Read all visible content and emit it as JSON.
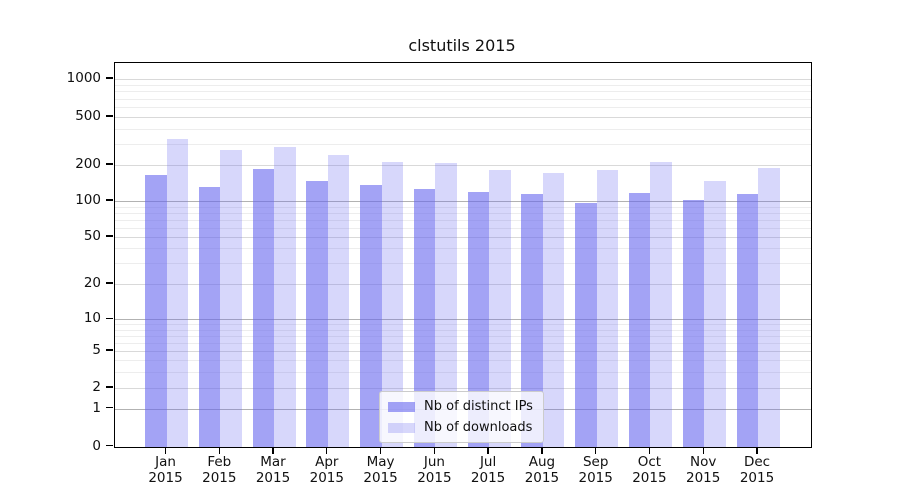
{
  "title": "clstutils 2015",
  "legend": {
    "items": [
      {
        "label": "Nb of distinct IPs",
        "color": "rgba(102,102,238,0.6)"
      },
      {
        "label": "Nb of downloads",
        "color": "rgba(102,102,238,0.26)"
      }
    ]
  },
  "axes": {
    "y_ticks": [
      {
        "value": 1000,
        "label": "1000"
      },
      {
        "value": 500,
        "label": "500"
      },
      {
        "value": 200,
        "label": "200"
      },
      {
        "value": 100,
        "label": "100"
      },
      {
        "value": 50,
        "label": "50"
      },
      {
        "value": 20,
        "label": "20"
      },
      {
        "value": 10,
        "label": "10"
      },
      {
        "value": 5,
        "label": "5"
      },
      {
        "value": 2,
        "label": "2"
      },
      {
        "value": 1,
        "label": "1"
      },
      {
        "value": 0,
        "label": "0"
      }
    ],
    "grid_power_values": [
      1,
      10,
      100
    ],
    "grid_minor_values": [
      3,
      4,
      6,
      7,
      8,
      9,
      30,
      40,
      60,
      70,
      80,
      90,
      300,
      400,
      600,
      700,
      800,
      900
    ],
    "x_tick_labels": [
      {
        "month": "Jan",
        "year": "2015"
      },
      {
        "month": "Feb",
        "year": "2015"
      },
      {
        "month": "Mar",
        "year": "2015"
      },
      {
        "month": "Apr",
        "year": "2015"
      },
      {
        "month": "May",
        "year": "2015"
      },
      {
        "month": "Jun",
        "year": "2015"
      },
      {
        "month": "Jul",
        "year": "2015"
      },
      {
        "month": "Aug",
        "year": "2015"
      },
      {
        "month": "Sep",
        "year": "2015"
      },
      {
        "month": "Oct",
        "year": "2015"
      },
      {
        "month": "Nov",
        "year": "2015"
      },
      {
        "month": "Dec",
        "year": "2015"
      }
    ]
  },
  "colors": {
    "bar_base": "#6666ee",
    "ips_fill": "rgba(102,102,238,0.6)",
    "downloads_fill": "rgba(102,102,238,0.26)",
    "grid_power": "#b2b2b2",
    "grid_labeled": "#d9d9d9",
    "grid_minor": "#ededed",
    "spine": "#000000"
  },
  "chart_data": {
    "type": "bar",
    "title": "clstutils 2015",
    "categories": [
      "Jan 2015",
      "Feb 2015",
      "Mar 2015",
      "Apr 2015",
      "May 2015",
      "Jun 2015",
      "Jul 2015",
      "Aug 2015",
      "Sep 2015",
      "Oct 2015",
      "Nov 2015",
      "Dec 2015"
    ],
    "series": [
      {
        "name": "Nb of distinct IPs",
        "values": [
          165,
          132,
          187,
          146,
          137,
          126,
          120,
          114,
          97,
          117,
          103,
          115
        ]
      },
      {
        "name": "Nb of downloads",
        "values": [
          332,
          268,
          284,
          241,
          211,
          208,
          182,
          172,
          183,
          213,
          147,
          190
        ]
      }
    ],
    "xlabel": "",
    "ylabel": "",
    "yscale": "symlog",
    "y_tick_values": [
      0,
      1,
      2,
      5,
      10,
      20,
      50,
      100,
      200,
      500,
      1000
    ],
    "ylim": [
      0,
      1700
    ],
    "grid": true,
    "legend_position": "lower center"
  }
}
